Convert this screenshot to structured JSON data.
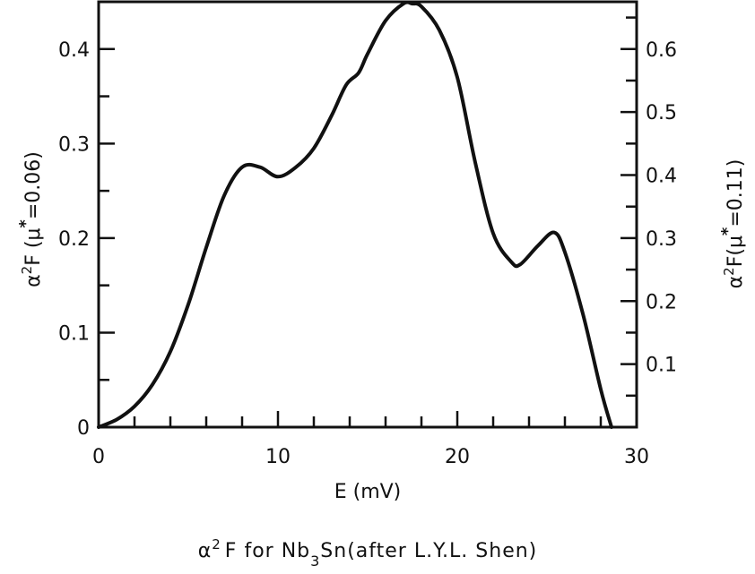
{
  "chart_data": {
    "type": "line",
    "title": "",
    "caption": {
      "prefix": "α",
      "sup": "2",
      "middle": "F for Nb",
      "sub": "3",
      "suffix": "Sn(after L.Y.L. Shen)"
    },
    "xlabel": "E (mV)",
    "ylabel_left": {
      "base": "α",
      "sup": "2",
      "mid": "F (μ",
      "star": "*",
      "end": "=0.06)"
    },
    "ylabel_right": {
      "base": "α",
      "sup": "2",
      "mid": "F(μ",
      "star": "*",
      "end": "=0.11)"
    },
    "xlim": [
      0,
      30
    ],
    "ylim_left": [
      0,
      0.45
    ],
    "ylim_right": [
      0,
      0.675
    ],
    "x_ticks_labeled": [
      "0",
      "10",
      "20",
      "30"
    ],
    "y_left_ticks_labeled": [
      "0",
      "0.1",
      "0.2",
      "0.3",
      "0.4"
    ],
    "y_right_ticks_labeled": [
      "0.1",
      "0.2",
      "0.3",
      "0.4",
      "0.5",
      "0.6"
    ],
    "grid": false,
    "series": [
      {
        "x": [
          0,
          1,
          2,
          3,
          4,
          5,
          6,
          7,
          8,
          9,
          10,
          11,
          12,
          13,
          13.8,
          14.5,
          15,
          16,
          17,
          17.5,
          18,
          19,
          20,
          21,
          22,
          23,
          23.5,
          24.5,
          25.4,
          26,
          27,
          28,
          28.6
        ],
        "y": [
          0,
          0.008,
          0.022,
          0.045,
          0.08,
          0.13,
          0.19,
          0.245,
          0.275,
          0.275,
          0.265,
          0.275,
          0.295,
          0.33,
          0.362,
          0.375,
          0.395,
          0.43,
          0.448,
          0.448,
          0.445,
          0.42,
          0.37,
          0.28,
          0.205,
          0.175,
          0.172,
          0.192,
          0.206,
          0.185,
          0.12,
          0.04,
          0
        ],
        "color": "#111111"
      }
    ]
  }
}
